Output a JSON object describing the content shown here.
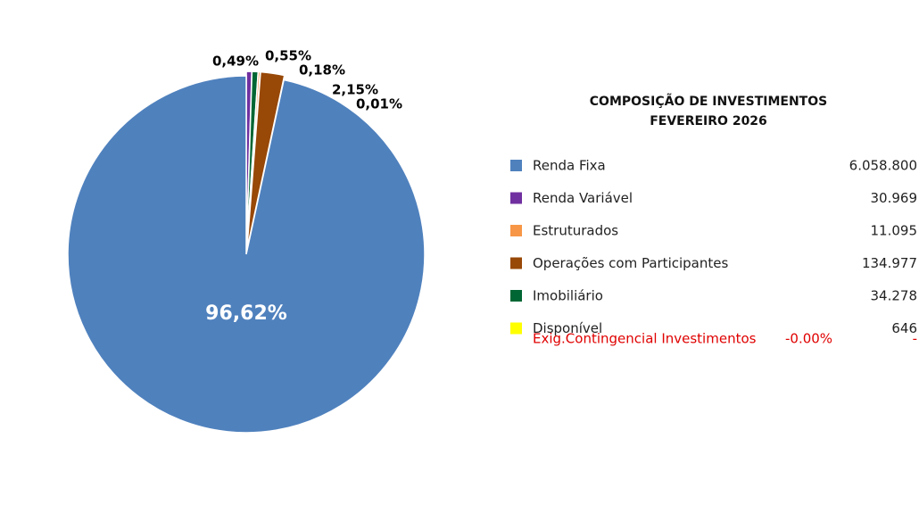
{
  "chart_data": {
    "type": "pie",
    "values": [
      0.49,
      0.55,
      0.18,
      2.15,
      0.01,
      96.62
    ],
    "value_labels": [
      "0,49%",
      "0,55%",
      "0,18%",
      "2,15%",
      "0,01%",
      "96,62%"
    ],
    "colors": [
      "#7030a0",
      "#006633",
      "#f79646",
      "#984807",
      "#ffff00",
      "#4f81bd"
    ]
  },
  "legend": {
    "title": "COMPOSIÇÃO DE INVESTIMENTOS",
    "subtitle": "FEVEREIRO 2026",
    "rows": [
      {
        "name": "Renda Fixa",
        "amount": "6.058.800",
        "color": "#4f81bd"
      },
      {
        "name": "Renda Variável",
        "amount": "30.969",
        "color": "#7030a0"
      },
      {
        "name": "Estruturados",
        "amount": "11.095",
        "color": "#f79646"
      },
      {
        "name": "Operações com Participantes",
        "amount": "134.977",
        "color": "#984807"
      },
      {
        "name": "Imobiliário",
        "amount": "34.278",
        "color": "#006633"
      },
      {
        "name": "Disponível",
        "amount": "646",
        "color": "#ffff00"
      }
    ],
    "note": {
      "name": "Exig.Contingencial Investimentos",
      "percent": "-0.00%",
      "amount": "-"
    }
  }
}
